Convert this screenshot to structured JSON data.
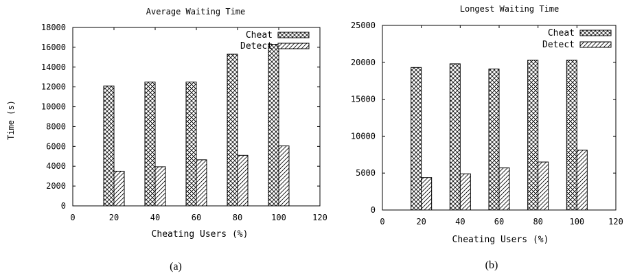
{
  "chart_data": [
    {
      "type": "bar",
      "title": "Average Waiting Time",
      "xlabel": "Cheating Users (%)",
      "ylabel": "Time (s)",
      "x": [
        20,
        40,
        60,
        80,
        100
      ],
      "xlim": [
        0,
        120
      ],
      "xticks": [
        0,
        20,
        40,
        60,
        80,
        100,
        120
      ],
      "ylim": [
        0,
        18000
      ],
      "yticks": [
        0,
        2000,
        4000,
        6000,
        8000,
        10000,
        12000,
        14000,
        16000,
        18000
      ],
      "grid": false,
      "legend_position": "top-right",
      "series": [
        {
          "name": "Cheat",
          "pattern": "crosshatch",
          "values": [
            12100,
            12500,
            12500,
            15300,
            16300
          ]
        },
        {
          "name": "Detect",
          "pattern": "diagonal",
          "values": [
            3500,
            3950,
            4650,
            5100,
            6050
          ]
        }
      ],
      "caption": "(a)"
    },
    {
      "type": "bar",
      "title": "Longest Waiting Time",
      "xlabel": "Cheating Users (%)",
      "ylabel": "",
      "x": [
        20,
        40,
        60,
        80,
        100
      ],
      "xlim": [
        0,
        120
      ],
      "xticks": [
        0,
        20,
        40,
        60,
        80,
        100,
        120
      ],
      "ylim": [
        0,
        25000
      ],
      "yticks": [
        0,
        5000,
        10000,
        15000,
        20000,
        25000
      ],
      "grid": false,
      "legend_position": "top-right",
      "series": [
        {
          "name": "Cheat",
          "pattern": "crosshatch",
          "values": [
            19300,
            19800,
            19100,
            20300,
            20300
          ]
        },
        {
          "name": "Detect",
          "pattern": "diagonal",
          "values": [
            4400,
            4900,
            5700,
            6500,
            8100
          ]
        }
      ],
      "caption": "(b)"
    }
  ]
}
